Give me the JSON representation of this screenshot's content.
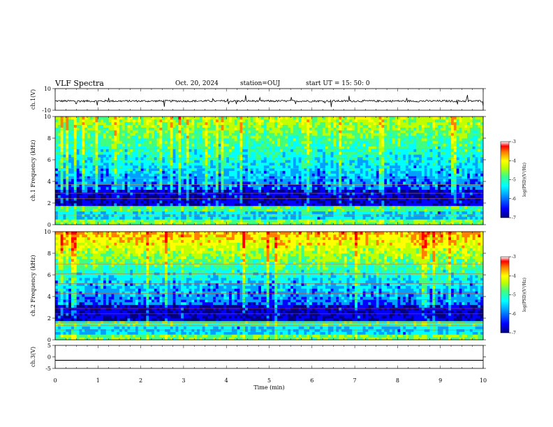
{
  "header": {
    "title": "VLF Spectra",
    "date": "Oct. 20, 2024",
    "station": "station=OUJ",
    "start": "start  UT =   15: 50: 0"
  },
  "colors": {
    "colormap": [
      "#000080",
      "#0000ff",
      "#00a0ff",
      "#00ffff",
      "#40ff80",
      "#c0ff00",
      "#ffff00",
      "#ff8000",
      "#ff0000"
    ],
    "trace": "#000000"
  },
  "chart_data": [
    {
      "type": "line",
      "id": "ch1-waveform",
      "ylabel": "ch.1(V)",
      "ylim": [
        -10,
        10
      ],
      "yticks": [
        "10",
        "-10"
      ],
      "series": [
        {
          "values_description": "noise around -1.5",
          "mean": -1.5
        }
      ]
    },
    {
      "type": "heatmap",
      "id": "ch1-spectrogram",
      "ylabel": "ch.1 Frequency (kHz)",
      "ylim": [
        0,
        10
      ],
      "yticks": [
        "0",
        "2",
        "4",
        "6",
        "8",
        "10"
      ],
      "colorbar": {
        "label": "log(PSD)(V²/Hz)",
        "range": [
          -7,
          -3
        ],
        "ticks": [
          "-3",
          "-4",
          "-5",
          "-6",
          "-7"
        ]
      }
    },
    {
      "type": "heatmap",
      "id": "ch2-spectrogram",
      "ylabel": "ch.2 Frequency (kHz)",
      "ylim": [
        0,
        10
      ],
      "yticks": [
        "0",
        "2",
        "4",
        "6",
        "8",
        "10"
      ],
      "colorbar": {
        "label": "log(PSD)(V²/Hz)",
        "range": [
          -7,
          -3
        ],
        "ticks": [
          "-3",
          "-4",
          "-5",
          "-6",
          "-7"
        ]
      }
    },
    {
      "type": "line",
      "id": "ch3-waveform",
      "ylabel": "ch.3(V)",
      "ylim": [
        -5,
        5
      ],
      "yticks": [
        "5",
        "0",
        "-5"
      ],
      "series": [
        {
          "values_description": "flat",
          "mean": -1.5
        }
      ]
    }
  ],
  "xaxis": {
    "label": "Time (min)",
    "xlim": [
      0,
      10
    ],
    "ticks": [
      "0",
      "1",
      "2",
      "3",
      "4",
      "5",
      "6",
      "7",
      "8",
      "9",
      "10"
    ]
  }
}
